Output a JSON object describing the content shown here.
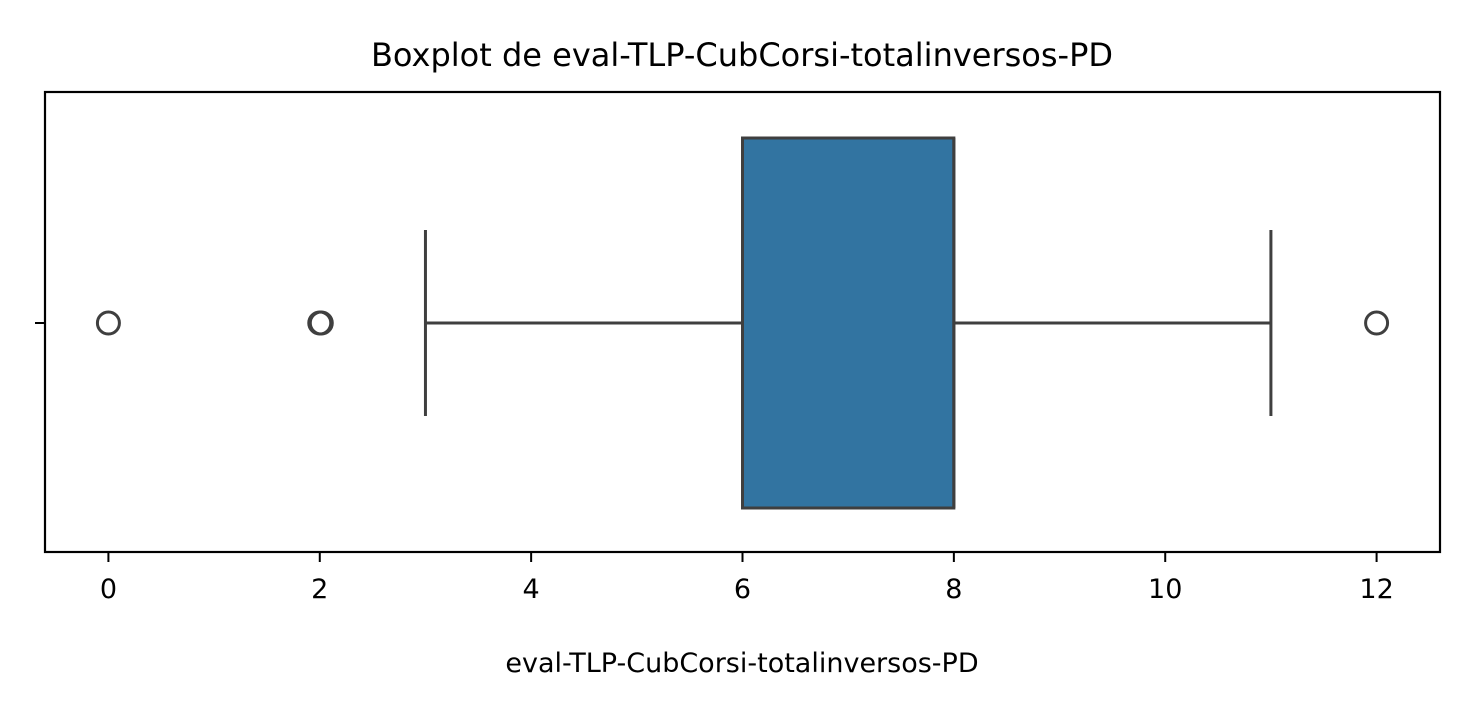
{
  "chart_data": {
    "type": "boxplot",
    "title": "Boxplot de eval-TLP-CubCorsi-totalinversos-PD",
    "xlabel": "eval-TLP-CubCorsi-totalinversos-PD",
    "ylabel": "",
    "orientation": "horizontal",
    "xlim": [
      -0.6,
      12.6
    ],
    "x_ticks": [
      0,
      2,
      4,
      6,
      8,
      10,
      12
    ],
    "x_tick_labels": [
      "0",
      "2",
      "4",
      "6",
      "8",
      "10",
      "12"
    ],
    "grid": false,
    "box": {
      "whisker_low": 3,
      "q1": 6,
      "median": 8,
      "q3": 8,
      "whisker_high": 11,
      "outliers": [
        0,
        2,
        12
      ]
    },
    "colors": {
      "box_fill": "#3274a1",
      "line": "#3f3f3f",
      "axes": "#000000",
      "background": "#ffffff"
    }
  }
}
